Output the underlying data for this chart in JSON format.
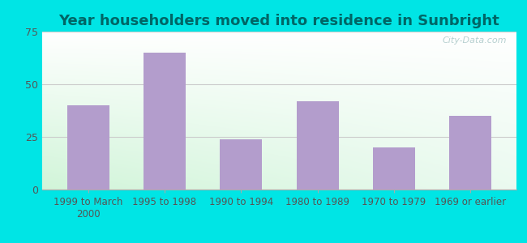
{
  "categories": [
    "1999 to March\n2000",
    "1995 to 1998",
    "1990 to 1994",
    "1980 to 1989",
    "1970 to 1979",
    "1969 or earlier"
  ],
  "values": [
    40,
    65,
    24,
    42,
    20,
    35
  ],
  "bar_color": "#b39dcc",
  "title": "Year householders moved into residence in Sunbright",
  "title_fontsize": 13,
  "title_fontweight": "bold",
  "title_color": "#006666",
  "ylim": [
    0,
    75
  ],
  "yticks": [
    0,
    25,
    50,
    75
  ],
  "background_outer": "#00e5e5",
  "watermark": "City-Data.com",
  "tick_fontsize": 8.5,
  "tick_color": "#555555",
  "grid_color": "#cccccc",
  "bar_width": 0.55
}
